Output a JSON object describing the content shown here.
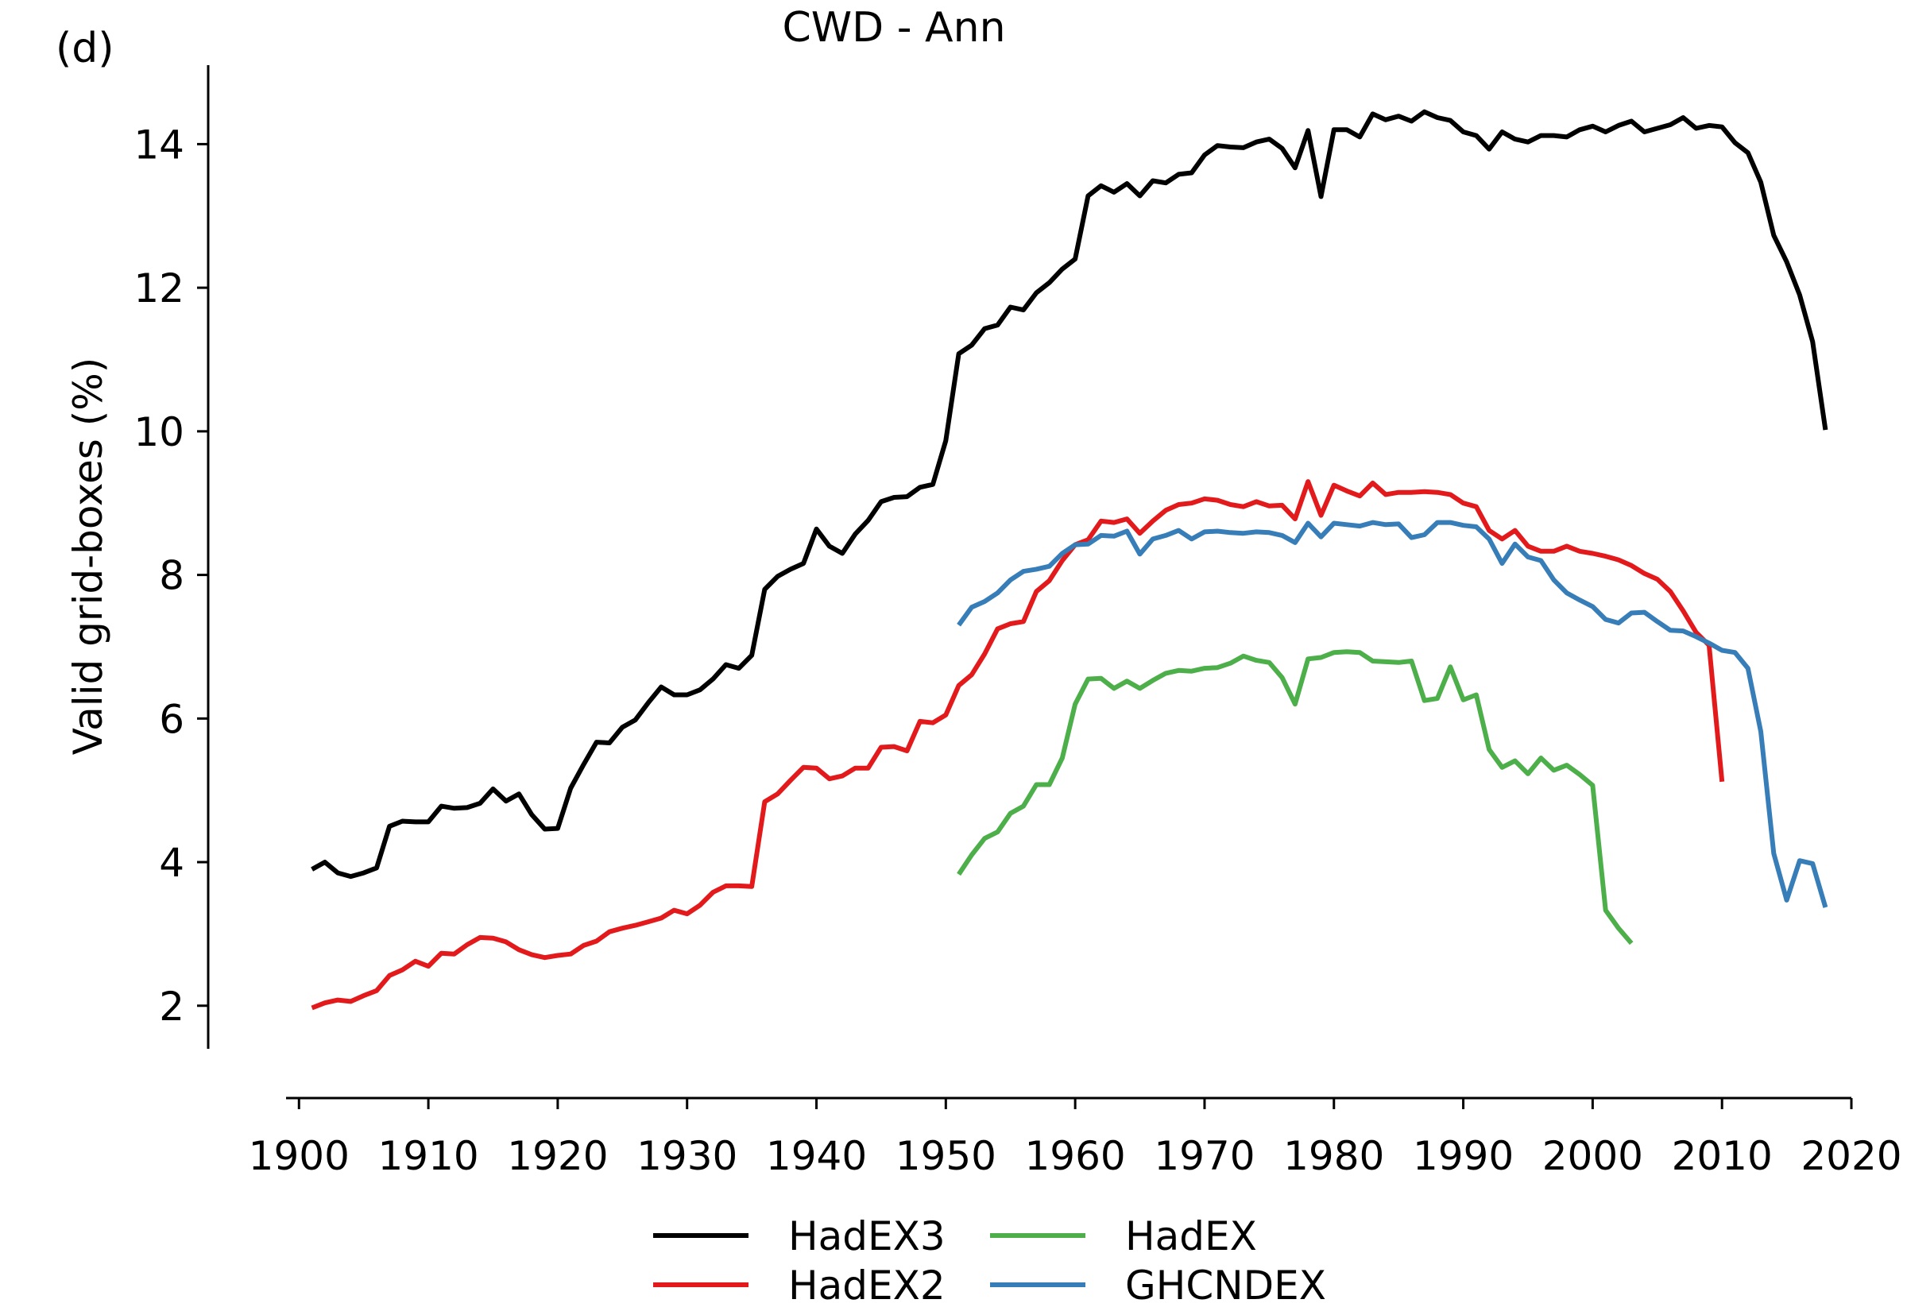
{
  "chart_data": {
    "type": "line",
    "panel_label": "(d)",
    "title": "CWD - Ann",
    "xlabel": "",
    "ylabel": "Valid grid-boxes (%)",
    "xlim": [
      1899,
      2020
    ],
    "ylim": [
      1.4,
      15.1
    ],
    "xticks": [
      1900,
      1910,
      1920,
      1930,
      1940,
      1950,
      1960,
      1970,
      1980,
      1990,
      2000,
      2010,
      2020
    ],
    "yticks": [
      2,
      4,
      6,
      8,
      10,
      12,
      14
    ],
    "grid": false,
    "legend_position": "bottom-center",
    "series": [
      {
        "name": "HadEX3",
        "color": "#000000",
        "x_start": 1901,
        "values": [
          3.9,
          4.0,
          3.85,
          3.8,
          3.85,
          3.92,
          4.5,
          4.57,
          4.56,
          4.56,
          4.78,
          4.75,
          4.76,
          4.82,
          5.02,
          4.85,
          4.95,
          4.66,
          4.46,
          4.47,
          5.03,
          5.36,
          5.67,
          5.66,
          5.88,
          5.98,
          6.22,
          6.44,
          6.33,
          6.33,
          6.4,
          6.55,
          6.75,
          6.7,
          6.88,
          7.8,
          7.98,
          8.08,
          8.16,
          8.64,
          8.4,
          8.3,
          8.57,
          8.76,
          9.02,
          9.08,
          9.09,
          9.22,
          9.26,
          9.87,
          11.08,
          11.2,
          11.43,
          11.48,
          11.73,
          11.69,
          11.93,
          12.07,
          12.26,
          12.4,
          13.28,
          13.42,
          13.33,
          13.45,
          13.28,
          13.49,
          13.46,
          13.58,
          13.6,
          13.85,
          13.98,
          13.96,
          13.95,
          14.03,
          14.07,
          13.94,
          13.67,
          14.19,
          13.27,
          14.2,
          14.2,
          14.1,
          14.42,
          14.34,
          14.39,
          14.32,
          14.45,
          14.37,
          14.33,
          14.17,
          14.12,
          13.93,
          14.17,
          14.07,
          14.03,
          14.12,
          14.12,
          14.1,
          14.2,
          14.25,
          14.17,
          14.26,
          14.32,
          14.17,
          14.22,
          14.27,
          14.37,
          14.22,
          14.26,
          14.24,
          14.02,
          13.88,
          13.47,
          12.73,
          12.36,
          11.9,
          11.25,
          10.02
        ]
      },
      {
        "name": "HadEX2",
        "color": "#e31a1c",
        "x_start": 1901,
        "values": [
          1.97,
          2.04,
          2.08,
          2.06,
          2.14,
          2.21,
          2.42,
          2.5,
          2.62,
          2.55,
          2.73,
          2.72,
          2.85,
          2.95,
          2.94,
          2.89,
          2.78,
          2.71,
          2.67,
          2.7,
          2.72,
          2.84,
          2.9,
          3.03,
          3.08,
          3.12,
          3.17,
          3.22,
          3.33,
          3.28,
          3.4,
          3.58,
          3.67,
          3.67,
          3.66,
          4.84,
          4.95,
          5.14,
          5.32,
          5.31,
          5.16,
          5.2,
          5.31,
          5.31,
          5.6,
          5.61,
          5.55,
          5.96,
          5.94,
          6.05,
          6.46,
          6.61,
          6.9,
          7.25,
          7.32,
          7.35,
          7.77,
          7.92,
          8.2,
          8.42,
          8.49,
          8.75,
          8.73,
          8.78,
          8.58,
          8.75,
          8.9,
          8.98,
          9.0,
          9.06,
          9.04,
          8.98,
          8.95,
          9.02,
          8.96,
          8.97,
          8.78,
          9.3,
          8.83,
          9.25,
          9.17,
          9.1,
          9.28,
          9.12,
          9.15,
          9.15,
          9.16,
          9.15,
          9.12,
          9.0,
          8.95,
          8.62,
          8.5,
          8.62,
          8.4,
          8.33,
          8.33,
          8.4,
          8.33,
          8.3,
          8.26,
          8.21,
          8.13,
          8.02,
          7.94,
          7.77,
          7.5,
          7.2,
          7.02,
          5.12
        ]
      },
      {
        "name": "HadEX",
        "color": "#4daf4a",
        "x_start": 1951,
        "values": [
          3.83,
          4.1,
          4.33,
          4.42,
          4.68,
          4.78,
          5.08,
          5.08,
          5.45,
          6.2,
          6.55,
          6.56,
          6.42,
          6.52,
          6.42,
          6.53,
          6.63,
          6.67,
          6.66,
          6.7,
          6.71,
          6.77,
          6.87,
          6.81,
          6.78,
          6.57,
          6.2,
          6.83,
          6.85,
          6.92,
          6.93,
          6.92,
          6.8,
          6.79,
          6.78,
          6.8,
          6.25,
          6.28,
          6.72,
          6.26,
          6.33,
          5.57,
          5.32,
          5.41,
          5.23,
          5.45,
          5.28,
          5.35,
          5.22,
          5.07,
          3.33,
          3.08,
          2.87
        ]
      },
      {
        "name": "GHCNDEX",
        "color": "#377eb8",
        "x_start": 1951,
        "values": [
          7.3,
          7.55,
          7.63,
          7.75,
          7.93,
          8.05,
          8.08,
          8.12,
          8.3,
          8.42,
          8.43,
          8.55,
          8.54,
          8.61,
          8.29,
          8.5,
          8.55,
          8.62,
          8.5,
          8.6,
          8.61,
          8.59,
          8.58,
          8.6,
          8.59,
          8.55,
          8.45,
          8.72,
          8.53,
          8.72,
          8.7,
          8.68,
          8.73,
          8.7,
          8.71,
          8.52,
          8.56,
          8.73,
          8.73,
          8.69,
          8.67,
          8.5,
          8.16,
          8.43,
          8.25,
          8.2,
          7.93,
          7.75,
          7.65,
          7.56,
          7.38,
          7.33,
          7.47,
          7.48,
          7.35,
          7.23,
          7.22,
          7.14,
          7.05,
          6.95,
          6.92,
          6.7,
          5.82,
          4.12,
          3.47,
          4.02,
          3.98,
          3.37
        ]
      }
    ]
  }
}
